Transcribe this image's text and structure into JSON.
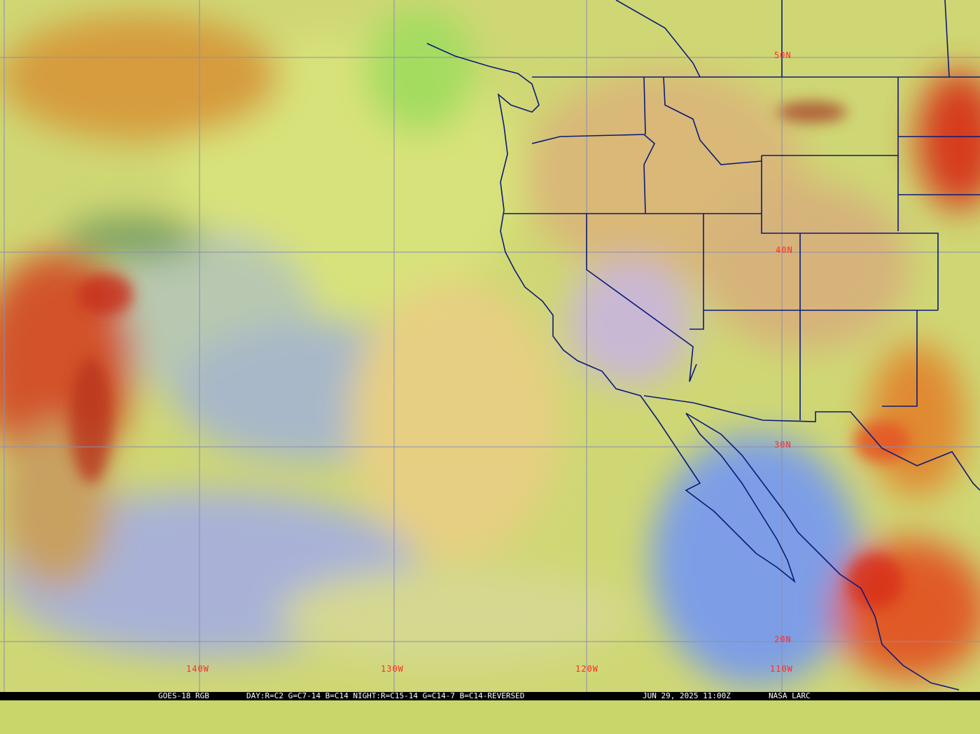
{
  "image": {
    "satellite": "GOES-18",
    "product": "RGB",
    "colors": {
      "grid": "#8a8fb0",
      "borders": "#0a1a7a",
      "labels": "#ff2a2a",
      "caption_bg": "#000000",
      "caption_text": "#ffffff"
    }
  },
  "latitude_labels": [
    "50N",
    "40N",
    "30N",
    "20N"
  ],
  "longitude_labels": [
    "140W",
    "130W",
    "120W",
    "110W"
  ],
  "caption": {
    "satellite": "GOES-18 RGB",
    "recipe": "DAY:R=C2 G=C7-14 B=C14 NIGHT:R=C15-14 G=C14-7 B=C14-REVERSED",
    "timestamp": "JUN 29, 2025 11:00Z",
    "source": "NASA LARC"
  }
}
